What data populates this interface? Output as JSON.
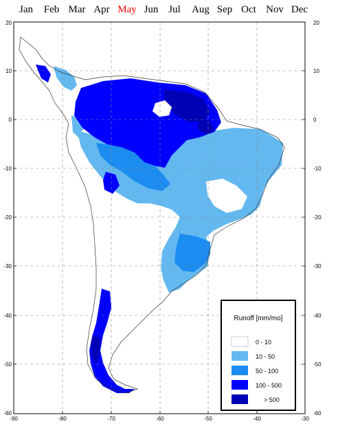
{
  "months": {
    "items": [
      "Jan",
      "Feb",
      "Mar",
      "Apr",
      "May",
      "Jun",
      "Jul",
      "Aug",
      "Sep",
      "Oct",
      "Nov",
      "Dec"
    ],
    "selected": "May",
    "selected_color": "#ff0000"
  },
  "map": {
    "lat_ticks": [
      "20",
      "10",
      "0",
      "-10",
      "-20",
      "-30",
      "-40",
      "-50",
      "-60"
    ],
    "lon_ticks": [
      "-90",
      "-80",
      "-70",
      "-60",
      "-50",
      "-40",
      "-30"
    ],
    "gridlines": true,
    "frame_color": "#000000"
  },
  "legend": {
    "title": "Runoff [mm/mo]",
    "placement": "bottom-right",
    "items": [
      {
        "label": "0  -  10",
        "color": "#ffffff"
      },
      {
        "label": "10  -  50",
        "color": "#63b8f0"
      },
      {
        "label": "50  -  100",
        "color": "#1c8cf0"
      },
      {
        "label": "100  -  500",
        "color": "#0000ff"
      },
      {
        "label": "> 500",
        "color": "#0000b4"
      }
    ]
  }
}
